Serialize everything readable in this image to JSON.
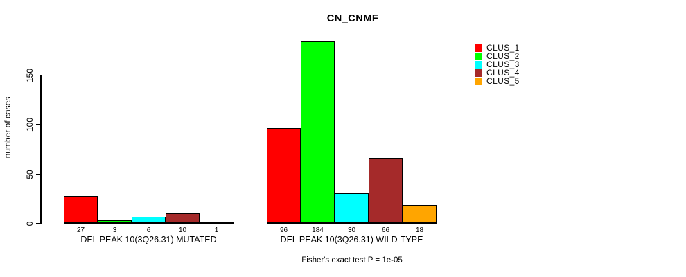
{
  "title": "CN_CNMF",
  "ylabel": "number of cases",
  "caption": "Fisher's exact test P = 1e-05",
  "colors": {
    "background": "#FFFFFF",
    "axis": "#000000",
    "bar_border": "#000000",
    "text": "#000000"
  },
  "legend": {
    "position": "right",
    "items": [
      {
        "label": "CLUS_1",
        "color": "#FF0000"
      },
      {
        "label": "CLUS_2",
        "color": "#00FF00"
      },
      {
        "label": "CLUS_3",
        "color": "#00FFFF"
      },
      {
        "label": "CLUS_4",
        "color": "#A52A2A"
      },
      {
        "label": "CLUS_5",
        "color": "#FFA500"
      }
    ]
  },
  "chart_data": {
    "type": "bar",
    "title": "CN_CNMF",
    "xlabel": "",
    "ylabel": "number of cases",
    "yticks": [
      0,
      50,
      100,
      150
    ],
    "ylim": [
      0,
      195
    ],
    "grid": false,
    "legend_position": "right",
    "series_labels": [
      "CLUS_1",
      "CLUS_2",
      "CLUS_3",
      "CLUS_4",
      "CLUS_5"
    ],
    "series_colors": [
      "#FF0000",
      "#00FF00",
      "#00FFFF",
      "#A52A2A",
      "#FFA500"
    ],
    "groups": [
      {
        "label": "DEL PEAK 10(3Q26.31) MUTATED",
        "values": [
          27,
          3,
          6,
          10,
          1
        ],
        "value_labels": [
          "27",
          "3",
          "6",
          "10",
          "1"
        ]
      },
      {
        "label": "DEL PEAK 10(3Q26.31) WILD-TYPE",
        "values": [
          96,
          184,
          30,
          66,
          18
        ],
        "value_labels": [
          "96",
          "184",
          "30",
          "66",
          "18"
        ]
      }
    ],
    "annotation": "Fisher's exact test P = 1e-05"
  }
}
